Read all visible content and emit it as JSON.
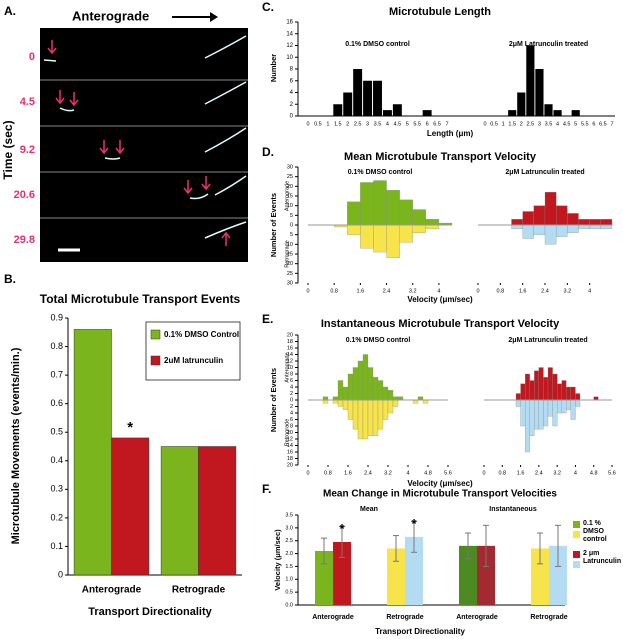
{
  "image_panel": {
    "panel_label": "A.",
    "direction": "Anterograde",
    "axis_label": "Time (sec)",
    "times": [
      "0",
      "4.5",
      "9.2",
      "20.6",
      "29.8"
    ]
  },
  "chart_data": [
    {
      "type": "bar",
      "panel_label": "B.",
      "title": "Total Microtubule Transport Events",
      "y_label": "Microtubule Movements (events/min.)",
      "x_label": "Transport Directionality",
      "categories": [
        "Anterograde",
        "Retrograde"
      ],
      "series": [
        {
          "name": "0.1% DMSO Control",
          "color": "#7ab51d",
          "values": [
            0.86,
            0.45
          ]
        },
        {
          "name": "2uM latrunculin",
          "color": "#c1171f",
          "values": [
            0.48,
            0.45
          ],
          "markers": [
            "*",
            null
          ]
        }
      ],
      "ylim": [
        0,
        0.9
      ],
      "yticks": [
        0,
        0.1,
        0.2,
        0.3,
        0.4,
        0.5,
        0.6,
        0.7,
        0.8,
        0.9
      ],
      "legend": "top-right"
    },
    {
      "type": "histogram",
      "panel_label": "C.",
      "title": "Microtubule Length",
      "y_label": "Number",
      "x_label": "Length (μm)",
      "color": "#000000",
      "ylim": [
        0,
        16
      ],
      "yticks": [
        0,
        2,
        4,
        6,
        8,
        10,
        12,
        14,
        16
      ],
      "groups": [
        {
          "name": "0.1% DMSO control",
          "categories": [
            "0",
            "0.5",
            "1",
            "1.5",
            "2",
            "2.5",
            "3",
            "3.5",
            "4",
            "4.5",
            "5",
            "5.5",
            "6",
            "6.5",
            "7"
          ],
          "values": [
            0,
            0,
            0,
            2,
            4,
            8,
            6,
            6,
            1,
            2,
            0,
            0,
            1,
            0,
            0
          ]
        },
        {
          "name": "2μM Latrunculin treated",
          "categories": [
            "0",
            "0.5",
            "1",
            "1.5",
            "2",
            "2.5",
            "3",
            "3.5",
            "4",
            "4.5",
            "5",
            "5.5",
            "6",
            "6.5",
            "7"
          ],
          "values": [
            0,
            0,
            0,
            1,
            4,
            12,
            8,
            2,
            1,
            0,
            1,
            0,
            0,
            0,
            0
          ]
        }
      ]
    },
    {
      "type": "diverging",
      "panel_label": "D.",
      "title": "Mean Microtubule Transport Velocity",
      "y_label": "Number of Events",
      "up_label": "Anterograde",
      "down_label": "Retrograde",
      "x_label": "Velocity (μm/sec)",
      "ylim": [
        -30,
        30
      ],
      "yticks": [
        {
          "value": -30,
          "label": "30"
        },
        {
          "value": -25,
          "label": "25"
        },
        {
          "value": -20,
          "label": "20"
        },
        {
          "value": -15,
          "label": "15"
        },
        {
          "value": -10,
          "label": "10"
        },
        {
          "value": -5,
          "label": "5"
        },
        0,
        5,
        10,
        15,
        20,
        25,
        30
      ],
      "bin_width": 0.4,
      "groups": [
        {
          "name": "0.1% DMSO control",
          "xlim": [
            0,
            4.4
          ],
          "xticks": [
            0,
            0.8,
            1.6,
            2.4,
            3.2,
            4
          ],
          "x": [
            0.8,
            1.2,
            1.6,
            2.0,
            2.4,
            2.8,
            3.2,
            3.6,
            4.0
          ],
          "series": [
            {
              "color": "#7ab51d",
              "values": [
                0,
                12,
                22,
                23,
                18,
                13,
                8,
                3,
                1
              ]
            },
            {
              "color": "#f7e34a",
              "values": [
                -1,
                -5,
                -12,
                -14,
                -17,
                -9,
                -4,
                -2,
                0
              ]
            }
          ]
        },
        {
          "name": "2μM Latrunculin treated",
          "xlim": [
            0,
            4.8
          ],
          "xticks": [
            0,
            0.8,
            1.6,
            2.4,
            3.2,
            4
          ],
          "x": [
            1.2,
            1.6,
            2.0,
            2.4,
            2.8,
            3.2,
            3.6,
            4.0,
            4.4
          ],
          "series": [
            {
              "color": "#c1171f",
              "values": [
                3,
                7,
                10,
                17,
                10,
                6,
                3,
                3,
                3
              ]
            },
            {
              "color": "#b3dcf2",
              "values": [
                -2,
                -7,
                -5,
                -10,
                -6,
                -4,
                -2,
                -2,
                -2
              ]
            }
          ]
        }
      ]
    },
    {
      "type": "diverging",
      "panel_label": "E.",
      "title": "Instantaneous Microtubule Transport Velocity",
      "y_label": "Number of Events",
      "up_label": "Anterograde",
      "down_label": "Retrograde",
      "x_label": "Velocity (μm/sec)",
      "ylim": [
        -20,
        20
      ],
      "yticks": [
        {
          "value": -20,
          "label": "20"
        },
        {
          "value": -18,
          "label": "18"
        },
        {
          "value": -16,
          "label": "16"
        },
        {
          "value": -14,
          "label": "14"
        },
        {
          "value": -12,
          "label": "12"
        },
        {
          "value": -10,
          "label": "10"
        },
        {
          "value": -8,
          "label": "8"
        },
        {
          "value": -6,
          "label": "6"
        },
        {
          "value": -4,
          "label": "4"
        },
        {
          "value": -2,
          "label": "2"
        },
        0,
        2,
        4,
        6,
        8,
        10,
        12,
        14,
        16,
        18,
        20
      ],
      "bin_width": 0.2,
      "groups": [
        {
          "name": "0.1% DMSO control",
          "xlim": [
            0,
            5.6
          ],
          "xticks": [
            0,
            0.8,
            1.6,
            2.4,
            3.2,
            4,
            4.8,
            5.6
          ],
          "x": [
            0.6,
            0.8,
            1.0,
            1.2,
            1.4,
            1.6,
            1.8,
            2.0,
            2.2,
            2.4,
            2.6,
            2.8,
            3.0,
            3.2,
            3.4,
            3.6,
            3.8,
            4.0,
            4.2,
            4.4,
            4.6
          ],
          "series": [
            {
              "color": "#7ab51d",
              "values": [
                1,
                0,
                1,
                6,
                4,
                8,
                10,
                12,
                14,
                10,
                7,
                6,
                4,
                3,
                1,
                1,
                0,
                0,
                0,
                1,
                0
              ]
            },
            {
              "color": "#f7e34a",
              "values": [
                -1,
                0,
                -1,
                -2,
                -3,
                -6,
                -9,
                -12,
                -12,
                -11,
                -11,
                -9,
                -6,
                -4,
                -2,
                0,
                0,
                0,
                -1,
                0,
                -1
              ]
            }
          ]
        },
        {
          "name": "2μM Latrunculin treated",
          "xlim": [
            0,
            5.6
          ],
          "xticks": [
            0,
            0.8,
            1.6,
            2.4,
            3.2,
            4,
            4.8,
            5.6
          ],
          "x": [
            1.2,
            1.4,
            1.6,
            1.8,
            2.0,
            2.2,
            2.4,
            2.6,
            2.8,
            3.0,
            3.2,
            3.4,
            3.6,
            3.8,
            4.0,
            4.2,
            4.4,
            4.6,
            4.8
          ],
          "series": [
            {
              "color": "#c1171f",
              "values": [
                0,
                2,
                5,
                8,
                6,
                9,
                10,
                7,
                10,
                8,
                5,
                6,
                4,
                4,
                2,
                0,
                0,
                0,
                1
              ]
            },
            {
              "color": "#b3dcf2",
              "values": [
                0,
                -2,
                -8,
                -16,
                -11,
                -9,
                -9,
                -8,
                -5,
                -8,
                -4,
                -4,
                -3,
                -6,
                -2,
                0,
                0,
                0,
                0
              ]
            }
          ]
        }
      ]
    },
    {
      "type": "errorbar",
      "panel_label": "F.",
      "title": "Mean Change in Microtubule Transport Velocities",
      "y_label": "Velocity (μm/sec)",
      "x_label": "Transport Directionality",
      "groups": [
        "Mean",
        "Instantaneous"
      ],
      "categories": [
        "Anterograde",
        "Retrograde",
        "Anterograde",
        "Retrograde"
      ],
      "ylim": [
        0,
        3.5
      ],
      "yticks": [
        {
          "value": 0,
          "label": "0.0"
        },
        0.5,
        {
          "value": 1,
          "label": "1.0"
        },
        1.5,
        {
          "value": 2,
          "label": "2.0"
        },
        2.5,
        {
          "value": 3,
          "label": "3.0"
        },
        3.5
      ],
      "series": [
        {
          "name": "0.1 % DMSO control",
          "colors": [
            "#7ab51d",
            "#f7e34a",
            "#4e8a22",
            "#f7e34a"
          ],
          "values": [
            2.1,
            2.2,
            2.3,
            2.2
          ],
          "errors": [
            0.5,
            0.5,
            0.5,
            0.6
          ]
        },
        {
          "name": "2 μm Latrunculin",
          "colors": [
            "#c1171f",
            "#b3dcf2",
            "#a32a30",
            "#b3dcf2"
          ],
          "values": [
            2.45,
            2.65,
            2.3,
            2.3
          ],
          "errors": [
            0.6,
            0.6,
            0.8,
            0.8
          ],
          "markers": [
            "*",
            "*",
            null,
            null
          ]
        }
      ],
      "legend": "right"
    }
  ]
}
